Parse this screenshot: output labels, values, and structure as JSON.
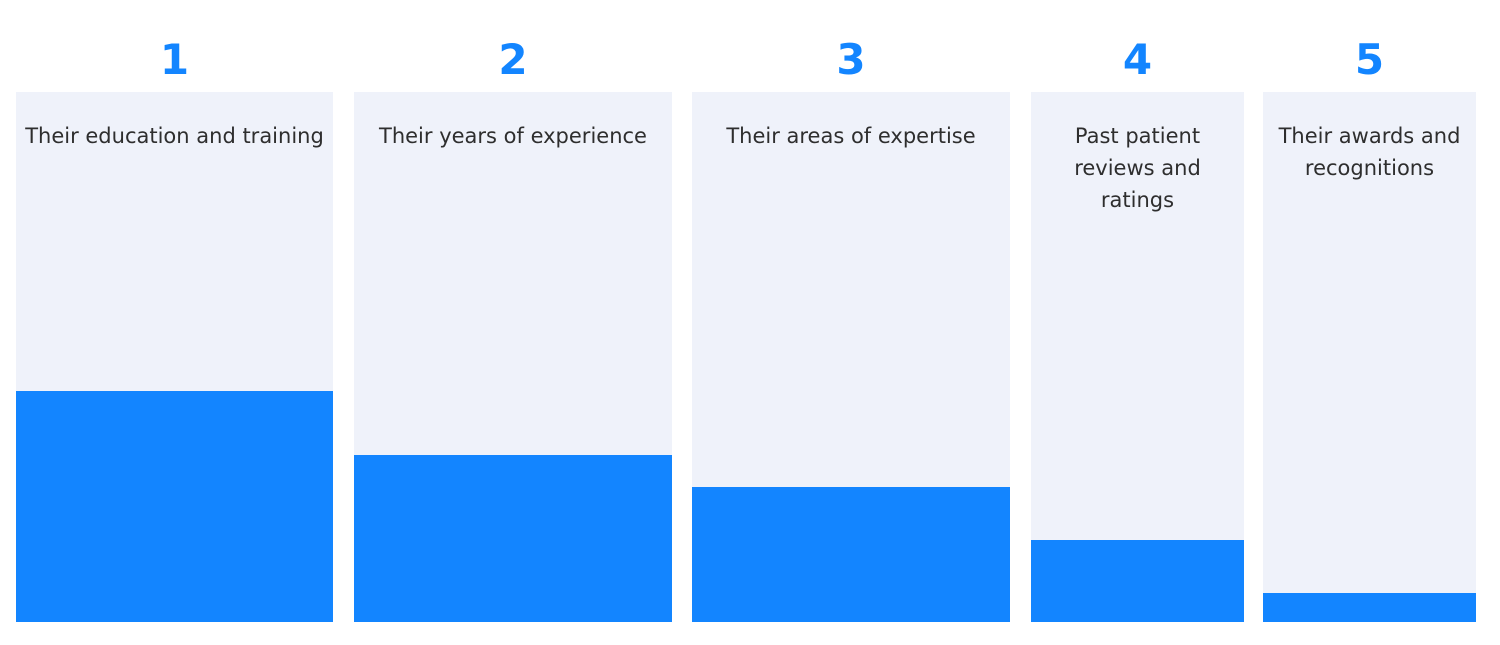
{
  "chart_data": {
    "type": "bar",
    "categories": [
      "Their education and training",
      "Their years of experience",
      "Their areas of expertise",
      "Past patient reviews and ratings",
      "Their awards and recognitions"
    ],
    "ranks": [
      "1",
      "2",
      "3",
      "4",
      "5"
    ],
    "values": [
      0.435,
      0.315,
      0.255,
      0.155,
      0.055
    ],
    "ylim": [
      0,
      1
    ],
    "grid": false,
    "colors": {
      "bar": "#1385ff",
      "panel": "#eff2fa",
      "rank": "#1385ff",
      "label": "#2e2e2e"
    }
  }
}
